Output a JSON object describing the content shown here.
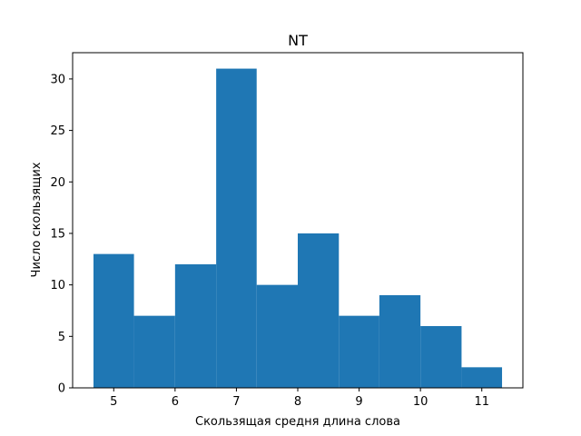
{
  "chart_data": {
    "type": "bar",
    "title": "NT",
    "xlabel": "Скользящая средня длина слова",
    "ylabel": "Число скользящих",
    "bins": [
      {
        "x0": 4.67,
        "x1": 5.33,
        "value": 13
      },
      {
        "x0": 5.33,
        "x1": 6.0,
        "value": 7
      },
      {
        "x0": 6.0,
        "x1": 6.67,
        "value": 12
      },
      {
        "x0": 6.67,
        "x1": 7.33,
        "value": 31
      },
      {
        "x0": 7.33,
        "x1": 8.0,
        "value": 10
      },
      {
        "x0": 8.0,
        "x1": 8.67,
        "value": 15
      },
      {
        "x0": 8.67,
        "x1": 9.33,
        "value": 7
      },
      {
        "x0": 9.33,
        "x1": 10.0,
        "value": 9
      },
      {
        "x0": 10.0,
        "x1": 10.67,
        "value": 6
      },
      {
        "x0": 10.67,
        "x1": 11.33,
        "value": 2
      }
    ],
    "xlim": [
      4.33,
      11.67
    ],
    "ylim": [
      0,
      32.55
    ],
    "xticks": [
      5,
      6,
      7,
      8,
      9,
      10,
      11
    ],
    "yticks": [
      0,
      5,
      10,
      15,
      20,
      25,
      30
    ],
    "bar_color": "#1f77b4",
    "grid": false,
    "legend": "none"
  }
}
